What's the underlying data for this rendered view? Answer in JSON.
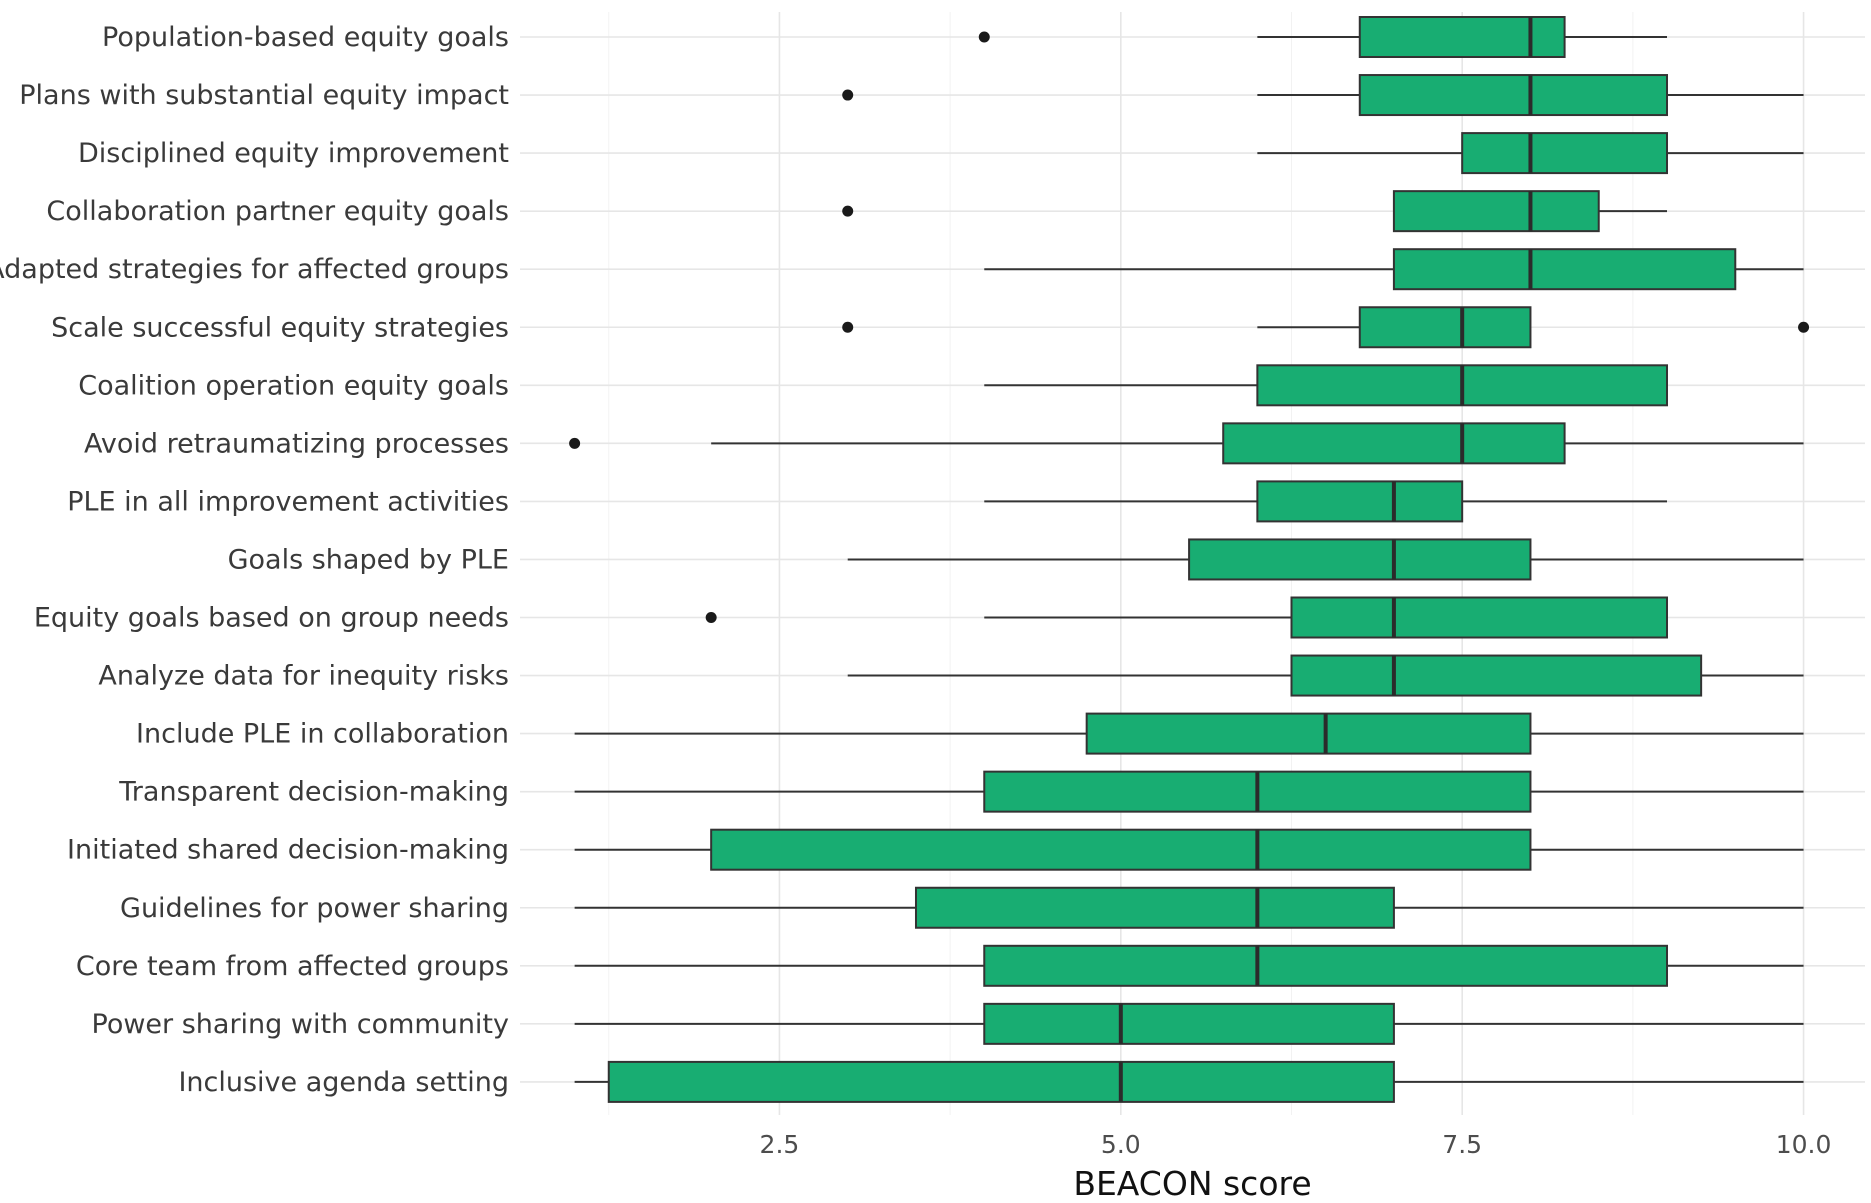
{
  "chart_data": {
    "type": "boxplot",
    "orientation": "horizontal",
    "title": "",
    "xlabel": "BEACON score",
    "ylabel": "",
    "xlim": [
      0.6,
      10.45
    ],
    "x_ticks": [
      2.5,
      5.0,
      7.5,
      10.0
    ],
    "x_tick_labels": [
      "2.5",
      "5.0",
      "7.5",
      "10.0"
    ],
    "grid": true,
    "legend": "none",
    "box_color": "#18ad72",
    "outline_color": "#333333",
    "categories": [
      {
        "label": "Population-based equity goals",
        "whisker_low": 6,
        "q1": 6.75,
        "median": 8,
        "q3": 8.25,
        "whisker_high": 9,
        "outliers": [
          4
        ]
      },
      {
        "label": "Plans with substantial equity impact",
        "whisker_low": 6,
        "q1": 6.75,
        "median": 8,
        "q3": 9,
        "whisker_high": 10,
        "outliers": [
          3
        ]
      },
      {
        "label": "Disciplined equity improvement",
        "whisker_low": 6,
        "q1": 7.5,
        "median": 8,
        "q3": 9,
        "whisker_high": 10,
        "outliers": []
      },
      {
        "label": "Collaboration partner equity goals",
        "whisker_low": 7,
        "q1": 7,
        "median": 8,
        "q3": 8.5,
        "whisker_high": 9,
        "outliers": [
          3
        ]
      },
      {
        "label": "Adapted strategies for affected groups",
        "whisker_low": 4,
        "q1": 7,
        "median": 8,
        "q3": 9.5,
        "whisker_high": 10,
        "outliers": []
      },
      {
        "label": "Scale successful equity strategies",
        "whisker_low": 6,
        "q1": 6.75,
        "median": 7.5,
        "q3": 8,
        "whisker_high": 8,
        "outliers": [
          3,
          10
        ]
      },
      {
        "label": "Coalition operation equity goals",
        "whisker_low": 4,
        "q1": 6,
        "median": 7.5,
        "q3": 9,
        "whisker_high": 9,
        "outliers": []
      },
      {
        "label": "Avoid retraumatizing processes",
        "whisker_low": 2,
        "q1": 5.75,
        "median": 7.5,
        "q3": 8.25,
        "whisker_high": 10,
        "outliers": [
          1
        ]
      },
      {
        "label": "PLE in all improvement activities",
        "whisker_low": 4,
        "q1": 6,
        "median": 7,
        "q3": 7.5,
        "whisker_high": 9,
        "outliers": []
      },
      {
        "label": "Goals shaped by PLE",
        "whisker_low": 3,
        "q1": 5.5,
        "median": 7,
        "q3": 8,
        "whisker_high": 10,
        "outliers": []
      },
      {
        "label": "Equity goals based on group needs",
        "whisker_low": 4,
        "q1": 6.25,
        "median": 7,
        "q3": 9,
        "whisker_high": 9,
        "outliers": [
          2
        ]
      },
      {
        "label": "Analyze data for inequity risks",
        "whisker_low": 3,
        "q1": 6.25,
        "median": 7,
        "q3": 9.25,
        "whisker_high": 10,
        "outliers": []
      },
      {
        "label": "Include PLE in collaboration",
        "whisker_low": 1,
        "q1": 4.75,
        "median": 6.5,
        "q3": 8,
        "whisker_high": 10,
        "outliers": []
      },
      {
        "label": "Transparent decision-making",
        "whisker_low": 1,
        "q1": 4,
        "median": 6,
        "q3": 8,
        "whisker_high": 10,
        "outliers": []
      },
      {
        "label": "Initiated shared decision-making",
        "whisker_low": 1,
        "q1": 2,
        "median": 6,
        "q3": 8,
        "whisker_high": 10,
        "outliers": []
      },
      {
        "label": "Guidelines for power sharing",
        "whisker_low": 1,
        "q1": 3.5,
        "median": 6,
        "q3": 7,
        "whisker_high": 10,
        "outliers": []
      },
      {
        "label": "Core team from affected groups",
        "whisker_low": 1,
        "q1": 4,
        "median": 6,
        "q3": 9,
        "whisker_high": 10,
        "outliers": []
      },
      {
        "label": "Power sharing with community",
        "whisker_low": 1,
        "q1": 4,
        "median": 5,
        "q3": 7,
        "whisker_high": 10,
        "outliers": []
      },
      {
        "label": "Inclusive agenda setting",
        "whisker_low": 1,
        "q1": 1.25,
        "median": 5,
        "q3": 7,
        "whisker_high": 10,
        "outliers": []
      }
    ]
  }
}
